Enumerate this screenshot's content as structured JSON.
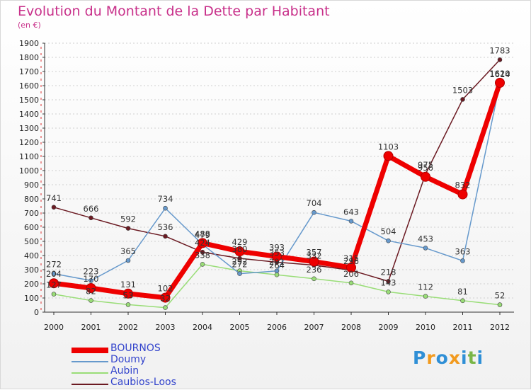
{
  "chart_data": {
    "type": "line",
    "title": "Evolution du Montant de la Dette par Habitant",
    "subtitle": "(en €)",
    "xlabel": "",
    "ylabel": "",
    "ylim": [
      0,
      1900
    ],
    "yticks": [
      0,
      100,
      200,
      300,
      400,
      500,
      600,
      700,
      800,
      900,
      1000,
      1100,
      1200,
      1300,
      1400,
      1500,
      1600,
      1700,
      1800,
      1900
    ],
    "categories": [
      "2000",
      "2001",
      "2002",
      "2003",
      "2004",
      "2005",
      "2006",
      "2007",
      "2008",
      "2009",
      "2010",
      "2011",
      "2012"
    ],
    "series": [
      {
        "name": "Caubios-Loos",
        "color": "#6b1a22",
        "values": [
          741,
          666,
          592,
          536,
          424,
          380,
          353,
          332,
          296,
          218,
          975,
          1503,
          1783
        ]
      },
      {
        "name": "Aubin",
        "color": "#99dd77",
        "values": [
          127,
          82,
          53,
          32,
          338,
          292,
          264,
          236,
          206,
          143,
          112,
          81,
          52
        ]
      },
      {
        "name": "Doumy",
        "color": "#6699cc",
        "values": [
          272,
          223,
          365,
          734,
          479,
          272,
          291,
          704,
          643,
          504,
          453,
          363,
          1614
        ]
      },
      {
        "name": "BOURNOS",
        "color": "#ee0000",
        "values": [
          204,
          170,
          131,
          102,
          488,
          429,
          393,
          357,
          315,
          1103,
          956,
          832,
          1620
        ]
      }
    ]
  },
  "legend": [
    {
      "name": "BOURNOS",
      "color": "#ee0000",
      "weight": "thick"
    },
    {
      "name": "Doumy",
      "color": "#6699cc",
      "weight": "thin"
    },
    {
      "name": "Aubin",
      "color": "#99dd77",
      "weight": "thin"
    },
    {
      "name": "Caubios-Loos",
      "color": "#6b1a22",
      "weight": "thin"
    }
  ],
  "logo": {
    "text": "Proxiti",
    "letters": [
      "P",
      "r",
      "o",
      "x",
      "i",
      "t",
      "i"
    ],
    "colors": [
      "#2f8fd6",
      "#f29a1e",
      "#2f8fd6",
      "#f29a1e",
      "#2f8fd6",
      "#7ab648",
      "#2f8fd6"
    ]
  }
}
